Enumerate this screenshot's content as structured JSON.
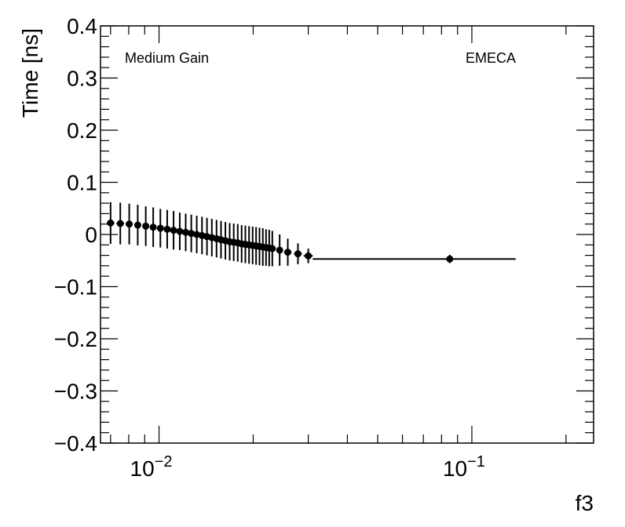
{
  "chart_data": {
    "type": "scatter",
    "title": "",
    "xlabel": "f3",
    "ylabel": "Time [ns]",
    "xscale": "log",
    "xlim": [
      0.0065,
      0.245
    ],
    "ylim": [
      -0.4,
      0.4
    ],
    "grid": false,
    "color": "#000000",
    "annotations": [
      {
        "text": "Medium Gain",
        "placement": "top-left"
      },
      {
        "text": "EMECA",
        "placement": "top-right"
      }
    ],
    "y_ticks": [
      {
        "value": -0.4,
        "label": "−0.4"
      },
      {
        "value": -0.3,
        "label": "−0.3"
      },
      {
        "value": -0.2,
        "label": "−0.2"
      },
      {
        "value": -0.1,
        "label": "−0.1"
      },
      {
        "value": 0.0,
        "label": "0"
      },
      {
        "value": 0.1,
        "label": "0.1"
      },
      {
        "value": 0.2,
        "label": "0.2"
      },
      {
        "value": 0.3,
        "label": "0.3"
      },
      {
        "value": 0.4,
        "label": "0.4"
      }
    ],
    "x_ticks": [
      {
        "value": 0.01,
        "base": "10",
        "exp": "−2"
      },
      {
        "value": 0.1,
        "base": "10",
        "exp": "−1"
      }
    ],
    "series": [
      {
        "points": [
          {
            "x": 0.007,
            "y": 0.022,
            "yerr": 0.04,
            "xlo": 0.0068,
            "xhi": 0.0072
          },
          {
            "x": 0.00752,
            "y": 0.021,
            "yerr": 0.04,
            "xlo": 0.00731,
            "xhi": 0.00773
          },
          {
            "x": 0.00803,
            "y": 0.02,
            "yerr": 0.039,
            "xlo": 0.00782,
            "xhi": 0.00824
          },
          {
            "x": 0.00855,
            "y": 0.018,
            "yerr": 0.039,
            "xlo": 0.00834,
            "xhi": 0.00876
          },
          {
            "x": 0.00907,
            "y": 0.016,
            "yerr": 0.038,
            "xlo": 0.00886,
            "xhi": 0.00928
          },
          {
            "x": 0.00958,
            "y": 0.014,
            "yerr": 0.038,
            "xlo": 0.00937,
            "xhi": 0.00979
          },
          {
            "x": 0.0101,
            "y": 0.012,
            "yerr": 0.037,
            "xlo": 0.00989,
            "xhi": 0.01031
          },
          {
            "x": 0.01062,
            "y": 0.01,
            "yerr": 0.037,
            "xlo": 0.01041,
            "xhi": 0.01083
          },
          {
            "x": 0.01113,
            "y": 0.008,
            "yerr": 0.037,
            "xlo": 0.01092,
            "xhi": 0.01134
          },
          {
            "x": 0.01165,
            "y": 0.006,
            "yerr": 0.036,
            "xlo": 0.01144,
            "xhi": 0.01186
          },
          {
            "x": 0.01217,
            "y": 0.004,
            "yerr": 0.036,
            "xlo": 0.01196,
            "xhi": 0.01238
          },
          {
            "x": 0.01268,
            "y": 0.002,
            "yerr": 0.036,
            "xlo": 0.01247,
            "xhi": 0.01289
          },
          {
            "x": 0.0132,
            "y": 0.0,
            "yerr": 0.036,
            "xlo": 0.01299,
            "xhi": 0.01341
          },
          {
            "x": 0.01372,
            "y": -0.002,
            "yerr": 0.036,
            "xlo": 0.01351,
            "xhi": 0.01393
          },
          {
            "x": 0.01423,
            "y": -0.004,
            "yerr": 0.036,
            "xlo": 0.01402,
            "xhi": 0.01444
          },
          {
            "x": 0.01475,
            "y": -0.006,
            "yerr": 0.036,
            "xlo": 0.01454,
            "xhi": 0.01496
          },
          {
            "x": 0.01527,
            "y": -0.008,
            "yerr": 0.036,
            "xlo": 0.01506,
            "xhi": 0.01548
          },
          {
            "x": 0.01578,
            "y": -0.01,
            "yerr": 0.036,
            "xlo": 0.01557,
            "xhi": 0.01599
          },
          {
            "x": 0.0163,
            "y": -0.012,
            "yerr": 0.036,
            "xlo": 0.01609,
            "xhi": 0.01651
          },
          {
            "x": 0.01682,
            "y": -0.014,
            "yerr": 0.036,
            "xlo": 0.01661,
            "xhi": 0.01703
          },
          {
            "x": 0.01733,
            "y": -0.015,
            "yerr": 0.036,
            "xlo": 0.01712,
            "xhi": 0.01754
          },
          {
            "x": 0.01785,
            "y": -0.016,
            "yerr": 0.036,
            "xlo": 0.01764,
            "xhi": 0.01806
          },
          {
            "x": 0.01837,
            "y": -0.018,
            "yerr": 0.036,
            "xlo": 0.01816,
            "xhi": 0.01858
          },
          {
            "x": 0.01888,
            "y": -0.019,
            "yerr": 0.036,
            "xlo": 0.01867,
            "xhi": 0.01909
          },
          {
            "x": 0.0194,
            "y": -0.02,
            "yerr": 0.036,
            "xlo": 0.01919,
            "xhi": 0.01961
          },
          {
            "x": 0.01992,
            "y": -0.021,
            "yerr": 0.036,
            "xlo": 0.01971,
            "xhi": 0.02013
          },
          {
            "x": 0.02043,
            "y": -0.022,
            "yerr": 0.036,
            "xlo": 0.02022,
            "xhi": 0.02064
          },
          {
            "x": 0.02095,
            "y": -0.023,
            "yerr": 0.036,
            "xlo": 0.02074,
            "xhi": 0.02116
          },
          {
            "x": 0.02147,
            "y": -0.024,
            "yerr": 0.036,
            "xlo": 0.02126,
            "xhi": 0.02168
          },
          {
            "x": 0.02198,
            "y": -0.025,
            "yerr": 0.035,
            "xlo": 0.02177,
            "xhi": 0.02219
          },
          {
            "x": 0.0225,
            "y": -0.026,
            "yerr": 0.035,
            "xlo": 0.02229,
            "xhi": 0.02271
          },
          {
            "x": 0.02302,
            "y": -0.027,
            "yerr": 0.034,
            "xlo": 0.02281,
            "xhi": 0.02323
          },
          {
            "x": 0.0243,
            "y": -0.03,
            "yerr": 0.03,
            "xlo": 0.0237,
            "xhi": 0.0249
          },
          {
            "x": 0.0258,
            "y": -0.034,
            "yerr": 0.026,
            "xlo": 0.0251,
            "xhi": 0.0265
          },
          {
            "x": 0.0278,
            "y": -0.037,
            "yerr": 0.02,
            "xlo": 0.027,
            "xhi": 0.0286
          },
          {
            "x": 0.03,
            "y": -0.041,
            "yerr": 0.014,
            "xlo": 0.029,
            "xhi": 0.031
          },
          {
            "x": 0.085,
            "y": -0.047,
            "yerr": 0.008,
            "xlo": 0.031,
            "xhi": 0.138
          }
        ]
      }
    ]
  }
}
